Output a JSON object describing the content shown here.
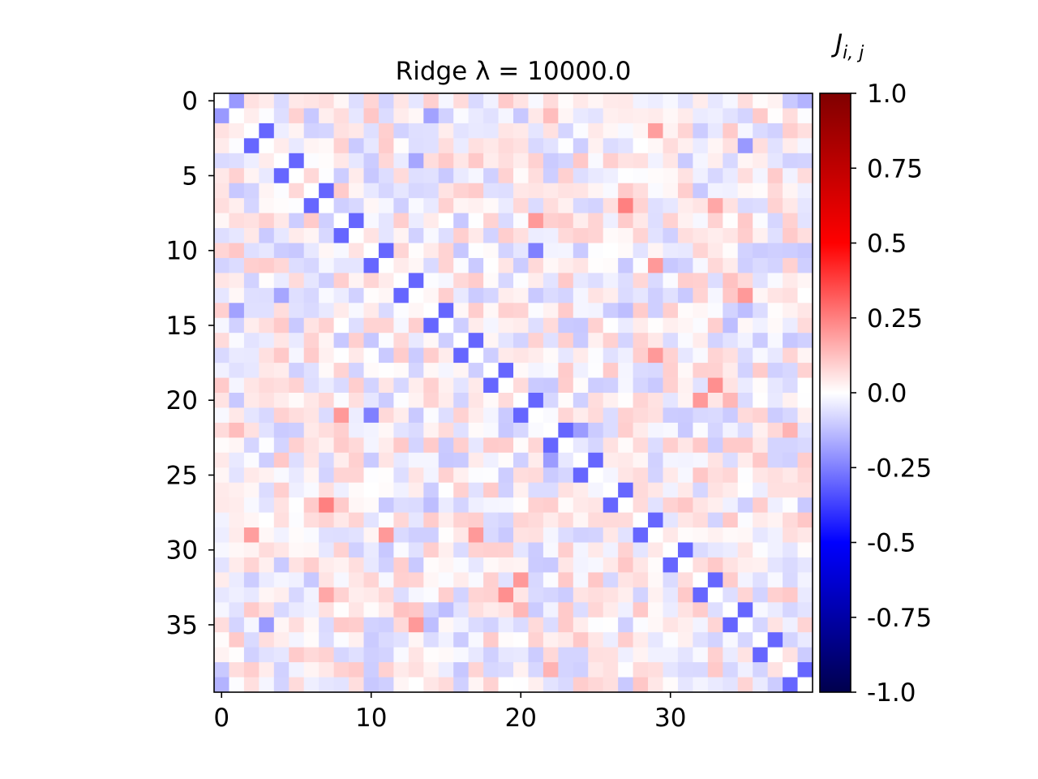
{
  "chart_data": {
    "type": "heatmap",
    "title": "Ridge λ =  10000.0",
    "colorbar_label": "J_{i,j}",
    "colorbar_label_main": "J",
    "colorbar_label_sub": "i, j",
    "n": 40,
    "xlim": [
      -0.5,
      39.5
    ],
    "ylim": [
      39.5,
      -0.5
    ],
    "x_ticks": [
      0,
      10,
      20,
      30
    ],
    "y_ticks": [
      0,
      5,
      10,
      15,
      20,
      25,
      30,
      35
    ],
    "x_tick_labels": [
      "0",
      "10",
      "20",
      "30"
    ],
    "y_tick_labels": [
      "0",
      "5",
      "10",
      "15",
      "20",
      "25",
      "30",
      "35"
    ],
    "colormap": "seismic",
    "vmin": -1.0,
    "vmax": 1.0,
    "colorbar_ticks": [
      1.0,
      0.75,
      0.5,
      0.25,
      0.0,
      -0.25,
      -0.5,
      -0.75,
      -1.0
    ],
    "colorbar_tick_labels": [
      "1.0",
      "0.75",
      "0.5",
      "0.25",
      "0.0",
      "-0.25",
      "-0.5",
      "-0.75",
      "-1.0"
    ],
    "diagonal_value": 0.0,
    "pair_block_coupling": -0.3,
    "off_diagonal_range": [
      -0.2,
      0.2
    ],
    "notable_cells": [
      {
        "i": 7,
        "j": 27,
        "v": 0.25
      },
      {
        "i": 27,
        "j": 7,
        "v": 0.25
      },
      {
        "i": 33,
        "j": 19,
        "v": 0.22
      },
      {
        "i": 19,
        "j": 33,
        "v": 0.22
      },
      {
        "i": 10,
        "j": 21,
        "v": -0.25
      },
      {
        "i": 21,
        "j": 10,
        "v": -0.25
      },
      {
        "i": 32,
        "j": 20,
        "v": 0.2
      },
      {
        "i": 20,
        "j": 32,
        "v": 0.2
      },
      {
        "i": 11,
        "j": 29,
        "v": 0.2
      },
      {
        "i": 29,
        "j": 11,
        "v": 0.2
      }
    ]
  }
}
